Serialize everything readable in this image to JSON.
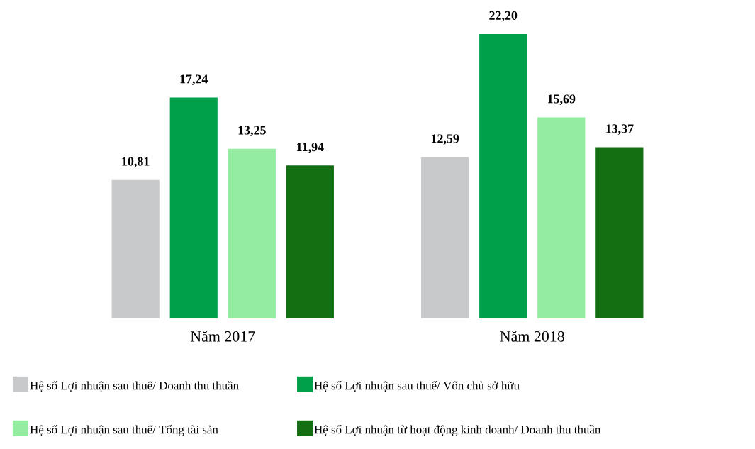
{
  "chart_data": {
    "type": "bar",
    "categories": [
      "Năm 2017",
      "Năm 2018"
    ],
    "series": [
      {
        "name": "Hệ số Lợi nhuận sau thuế/ Doanh thu thuần",
        "color": "#c8c9cb",
        "values": [
          10.81,
          12.59
        ],
        "value_labels": [
          "10,81",
          "12,59"
        ]
      },
      {
        "name": "Hệ số Lợi nhuận sau thuế/ Vốn chủ sở hữu",
        "color": "#00a04b",
        "values": [
          17.24,
          22.2
        ],
        "value_labels": [
          "17,24",
          "22,20"
        ]
      },
      {
        "name": "Hệ số Lợi nhuận sau thuế/ Tổng tài sản",
        "color": "#93ec9f",
        "values": [
          13.25,
          15.69
        ],
        "value_labels": [
          "13,25",
          "15,69"
        ]
      },
      {
        "name": "Hệ số Lợi nhuận từ hoạt động kinh doanh/ Doanh thu thuần",
        "color": "#136f12",
        "values": [
          11.94,
          13.37
        ],
        "value_labels": [
          "11,94",
          "13,37"
        ]
      }
    ],
    "legend": "bottom"
  }
}
